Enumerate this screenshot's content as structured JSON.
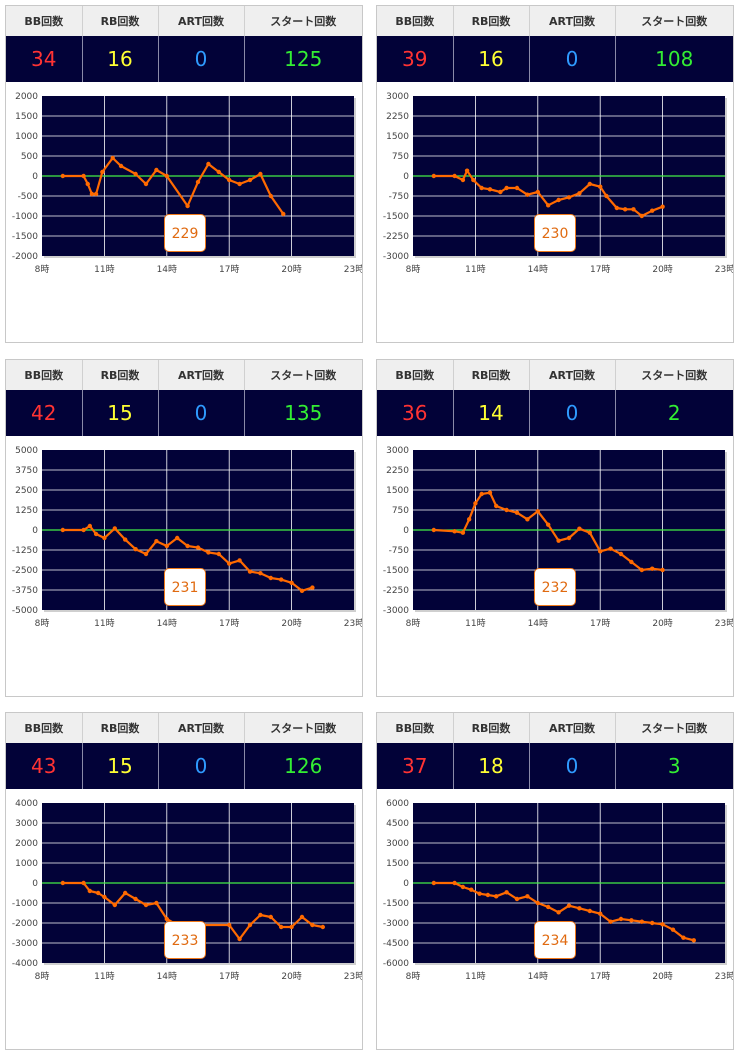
{
  "headers": {
    "bb": "BB回数",
    "rb": "RB回数",
    "art": "ART回数",
    "start": "スタート回数"
  },
  "x_ticks": [
    "8時",
    "11時",
    "14時",
    "17時",
    "20時",
    "23時"
  ],
  "cards": [
    {
      "bb": "34",
      "rb": "16",
      "art": "0",
      "start": "125",
      "machine": "229",
      "chart_data": {
        "type": "line",
        "ylim": [
          -2000,
          2000
        ],
        "yticks": [
          "2000",
          "1500",
          "1000",
          "500",
          "0",
          "-500",
          "-1000",
          "-1500",
          "-2000"
        ],
        "x": [
          9.0,
          10.0,
          10.2,
          10.4,
          10.6,
          10.9,
          11.4,
          11.8,
          12.5,
          13.0,
          13.5,
          14.0,
          15.0,
          15.5,
          16.0,
          16.5,
          17.0,
          17.5,
          18.0,
          18.5,
          19.0,
          19.6
        ],
        "y": [
          0,
          0,
          -200,
          -450,
          -450,
          100,
          450,
          250,
          50,
          -200,
          150,
          0,
          -750,
          -150,
          300,
          100,
          -100,
          -200,
          -100,
          50,
          -500,
          -950
        ]
      }
    },
    {
      "bb": "39",
      "rb": "16",
      "art": "0",
      "start": "108",
      "machine": "230",
      "chart_data": {
        "type": "line",
        "ylim": [
          -3000,
          3000
        ],
        "yticks": [
          "3000",
          "2250",
          "1500",
          "750",
          "0",
          "-750",
          "-1500",
          "-2250",
          "-3000"
        ],
        "x": [
          9.0,
          10.0,
          10.4,
          10.6,
          10.9,
          11.3,
          11.7,
          12.2,
          12.5,
          13.0,
          13.5,
          14.0,
          14.5,
          15.0,
          15.5,
          16.0,
          16.5,
          17.0,
          17.3,
          17.8,
          18.2,
          18.6,
          19.0,
          19.5,
          20.0
        ],
        "y": [
          0,
          0,
          -150,
          200,
          -150,
          -450,
          -500,
          -600,
          -450,
          -450,
          -700,
          -600,
          -1100,
          -900,
          -800,
          -650,
          -300,
          -400,
          -750,
          -1200,
          -1250,
          -1250,
          -1500,
          -1300,
          -1150
        ]
      }
    },
    {
      "bb": "42",
      "rb": "15",
      "art": "0",
      "start": "135",
      "machine": "231",
      "chart_data": {
        "type": "line",
        "ylim": [
          -5000,
          5000
        ],
        "yticks": [
          "5000",
          "3750",
          "2500",
          "1250",
          "0",
          "-1250",
          "-2500",
          "-3750",
          "-5000"
        ],
        "x": [
          9.0,
          10.0,
          10.3,
          10.6,
          11.0,
          11.5,
          12.0,
          12.5,
          13.0,
          13.5,
          14.0,
          14.5,
          15.0,
          15.5,
          16.0,
          16.5,
          17.0,
          17.5,
          18.0,
          18.5,
          19.0,
          19.5,
          20.0,
          20.5,
          21.0
        ],
        "y": [
          0,
          0,
          250,
          -250,
          -500,
          100,
          -600,
          -1200,
          -1500,
          -700,
          -1000,
          -500,
          -1000,
          -1100,
          -1400,
          -1500,
          -2100,
          -1900,
          -2600,
          -2700,
          -3000,
          -3100,
          -3300,
          -3800,
          -3600
        ]
      }
    },
    {
      "bb": "36",
      "rb": "14",
      "art": "0",
      "start": "2",
      "machine": "232",
      "chart_data": {
        "type": "line",
        "ylim": [
          -3000,
          3000
        ],
        "yticks": [
          "3000",
          "2250",
          "1500",
          "750",
          "0",
          "-750",
          "-1500",
          "-2250",
          "-3000"
        ],
        "x": [
          9.0,
          10.0,
          10.4,
          10.7,
          11.0,
          11.3,
          11.7,
          12.0,
          12.5,
          13.0,
          13.5,
          14.0,
          14.5,
          15.0,
          15.5,
          16.0,
          16.5,
          17.0,
          17.5,
          18.0,
          18.5,
          19.0,
          19.5,
          20.0
        ],
        "y": [
          0,
          -50,
          -100,
          400,
          1000,
          1350,
          1400,
          900,
          750,
          650,
          400,
          700,
          200,
          -400,
          -300,
          50,
          -100,
          -800,
          -700,
          -900,
          -1200,
          -1500,
          -1450,
          -1500
        ]
      }
    },
    {
      "bb": "43",
      "rb": "15",
      "art": "0",
      "start": "126",
      "machine": "233",
      "chart_data": {
        "type": "line",
        "ylim": [
          -4000,
          4000
        ],
        "yticks": [
          "4000",
          "3000",
          "2000",
          "1000",
          "0",
          "-1000",
          "-2000",
          "-3000",
          "-4000"
        ],
        "x": [
          9.0,
          10.0,
          10.3,
          10.7,
          11.0,
          11.5,
          12.0,
          12.5,
          13.0,
          13.5,
          14.0,
          14.5,
          15.0,
          17.0,
          17.5,
          18.0,
          18.5,
          19.0,
          19.5,
          20.0,
          20.5,
          21.0,
          21.5
        ],
        "y": [
          0,
          0,
          -400,
          -500,
          -700,
          -1100,
          -500,
          -800,
          -1100,
          -1000,
          -1800,
          -2100,
          -2100,
          -2100,
          -2800,
          -2100,
          -1600,
          -1700,
          -2200,
          -2200,
          -1700,
          -2100,
          -2200
        ]
      }
    },
    {
      "bb": "37",
      "rb": "18",
      "art": "0",
      "start": "3",
      "machine": "234",
      "chart_data": {
        "type": "line",
        "ylim": [
          -6000,
          6000
        ],
        "yticks": [
          "6000",
          "4500",
          "3000",
          "1500",
          "0",
          "-1500",
          "-3000",
          "-4500",
          "-6000"
        ],
        "x": [
          9.0,
          10.0,
          10.4,
          10.8,
          11.2,
          11.6,
          12.0,
          12.5,
          13.0,
          13.5,
          14.0,
          14.5,
          15.0,
          15.5,
          16.0,
          16.5,
          17.0,
          17.5,
          18.0,
          18.5,
          19.0,
          19.5,
          20.0,
          20.5,
          21.0,
          21.5
        ],
        "y": [
          0,
          0,
          -300,
          -500,
          -800,
          -900,
          -1000,
          -700,
          -1200,
          -1000,
          -1500,
          -1800,
          -2200,
          -1700,
          -1900,
          -2100,
          -2300,
          -2900,
          -2700,
          -2800,
          -2900,
          -3000,
          -3100,
          -3500,
          -4100,
          -4300
        ]
      }
    }
  ]
}
